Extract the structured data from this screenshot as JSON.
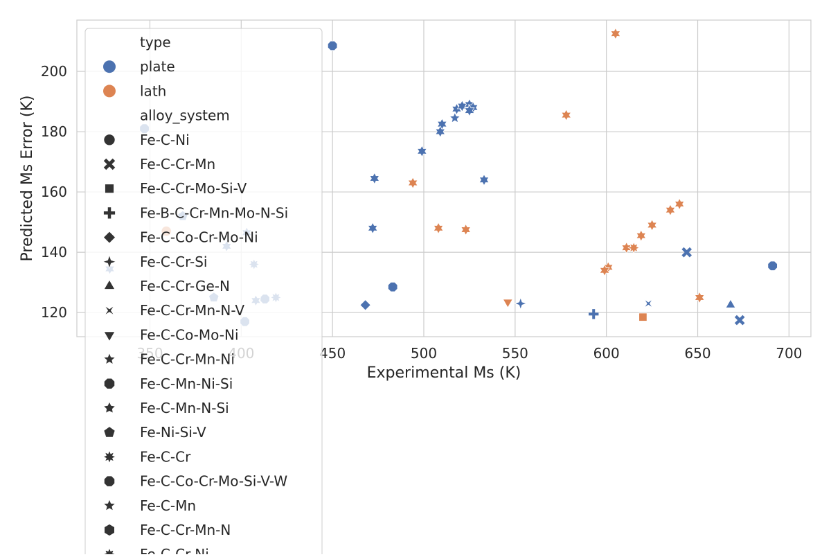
{
  "chart_data": {
    "type": "scatter",
    "xlabel": "Experimental Ms (K)",
    "ylabel": "Predicted Ms Error (K)",
    "xlim": [
      310,
      712
    ],
    "ylim": [
      112,
      217
    ],
    "xticks": [
      350,
      400,
      450,
      500,
      550,
      600,
      650,
      700
    ],
    "yticks": [
      120,
      140,
      160,
      180,
      200
    ],
    "grid": true,
    "legend_placement": "upper-left",
    "hue_legend": {
      "title": "type",
      "entries": [
        {
          "label": "plate",
          "color": "#4c72b0"
        },
        {
          "label": "lath",
          "color": "#dd8452"
        }
      ]
    },
    "style_legend": {
      "title": "alloy_system",
      "entries": [
        {
          "label": "Fe-C-Ni",
          "marker": "circle"
        },
        {
          "label": "Fe-C-Cr-Mn",
          "marker": "x"
        },
        {
          "label": "Fe-C-Cr-Mo-Si-V",
          "marker": "square"
        },
        {
          "label": "Fe-B-C-Cr-Mn-Mo-N-Si",
          "marker": "plus"
        },
        {
          "label": "Fe-C-Co-Cr-Mo-Ni",
          "marker": "diamond"
        },
        {
          "label": "Fe-C-Cr-Si",
          "marker": "star4"
        },
        {
          "label": "Fe-C-Cr-Ge-N",
          "marker": "triangle-up"
        },
        {
          "label": "Fe-C-Cr-Mn-N-V",
          "marker": "bowtie"
        },
        {
          "label": "Fe-C-Co-Mo-Ni",
          "marker": "triangle-down"
        },
        {
          "label": "Fe-C-Cr-Mn-Ni",
          "marker": "star5"
        },
        {
          "label": "Fe-C-Mn-Ni-Si",
          "marker": "octagon"
        },
        {
          "label": "Fe-C-Mn-N-Si",
          "marker": "star5b"
        },
        {
          "label": "Fe-Ni-Si-V",
          "marker": "pentagon"
        },
        {
          "label": "Fe-C-Cr",
          "marker": "star8"
        },
        {
          "label": "Fe-C-Co-Cr-Mo-Si-V-W",
          "marker": "octagon"
        },
        {
          "label": "Fe-C-Mn",
          "marker": "star5"
        },
        {
          "label": "Fe-C-Cr-Mn-N",
          "marker": "hexagon"
        },
        {
          "label": "Fe-C-Cr-Ni",
          "marker": "star8"
        }
      ]
    },
    "points": [
      {
        "x": 450,
        "y": 208.5,
        "type": "plate",
        "marker": "octagon"
      },
      {
        "x": 605,
        "y": 212.5,
        "type": "lath",
        "marker": "star6"
      },
      {
        "x": 347,
        "y": 181,
        "type": "plate",
        "marker": "octagon"
      },
      {
        "x": 368,
        "y": 152,
        "type": "plate",
        "marker": "pentagon"
      },
      {
        "x": 359,
        "y": 147,
        "type": "lath",
        "marker": "circle"
      },
      {
        "x": 403,
        "y": 146.5,
        "type": "plate",
        "marker": "star6"
      },
      {
        "x": 392,
        "y": 142,
        "type": "plate",
        "marker": "star6"
      },
      {
        "x": 407,
        "y": 136,
        "type": "plate",
        "marker": "star8"
      },
      {
        "x": 328,
        "y": 134.5,
        "type": "plate",
        "marker": "star6"
      },
      {
        "x": 385,
        "y": 125,
        "type": "plate",
        "marker": "pentagon"
      },
      {
        "x": 413,
        "y": 124.5,
        "type": "plate",
        "marker": "octagon"
      },
      {
        "x": 419,
        "y": 125,
        "type": "plate",
        "marker": "star8"
      },
      {
        "x": 408,
        "y": 124,
        "type": "plate",
        "marker": "star6"
      },
      {
        "x": 402,
        "y": 117,
        "type": "plate",
        "marker": "octagon"
      },
      {
        "x": 518,
        "y": 187.5,
        "type": "plate",
        "marker": "star6"
      },
      {
        "x": 521,
        "y": 188.5,
        "type": "plate",
        "marker": "star6"
      },
      {
        "x": 525,
        "y": 189,
        "type": "plate",
        "marker": "star6"
      },
      {
        "x": 527,
        "y": 188,
        "type": "plate",
        "marker": "star6"
      },
      {
        "x": 525,
        "y": 187,
        "type": "plate",
        "marker": "star6"
      },
      {
        "x": 517,
        "y": 184.5,
        "type": "plate",
        "marker": "star5"
      },
      {
        "x": 510,
        "y": 182.5,
        "type": "plate",
        "marker": "star6"
      },
      {
        "x": 509,
        "y": 180,
        "type": "plate",
        "marker": "star6"
      },
      {
        "x": 578,
        "y": 185.5,
        "type": "lath",
        "marker": "star6"
      },
      {
        "x": 499,
        "y": 173.5,
        "type": "plate",
        "marker": "star6"
      },
      {
        "x": 473,
        "y": 164.5,
        "type": "plate",
        "marker": "star6"
      },
      {
        "x": 533,
        "y": 164,
        "type": "plate",
        "marker": "star6"
      },
      {
        "x": 494,
        "y": 163,
        "type": "lath",
        "marker": "star6"
      },
      {
        "x": 472,
        "y": 148,
        "type": "plate",
        "marker": "star6"
      },
      {
        "x": 508,
        "y": 148,
        "type": "lath",
        "marker": "star6"
      },
      {
        "x": 523,
        "y": 147.5,
        "type": "lath",
        "marker": "star6"
      },
      {
        "x": 640,
        "y": 156,
        "type": "lath",
        "marker": "star6"
      },
      {
        "x": 635,
        "y": 154,
        "type": "lath",
        "marker": "star6"
      },
      {
        "x": 625,
        "y": 149,
        "type": "lath",
        "marker": "star6"
      },
      {
        "x": 619,
        "y": 145.5,
        "type": "lath",
        "marker": "star6"
      },
      {
        "x": 611,
        "y": 141.5,
        "type": "lath",
        "marker": "star6"
      },
      {
        "x": 615,
        "y": 141.5,
        "type": "lath",
        "marker": "star8"
      },
      {
        "x": 601,
        "y": 135,
        "type": "lath",
        "marker": "star6"
      },
      {
        "x": 599,
        "y": 134,
        "type": "lath",
        "marker": "star6"
      },
      {
        "x": 644,
        "y": 140,
        "type": "plate",
        "marker": "x"
      },
      {
        "x": 691,
        "y": 135.5,
        "type": "plate",
        "marker": "octagon"
      },
      {
        "x": 651,
        "y": 125,
        "type": "lath",
        "marker": "star6"
      },
      {
        "x": 468,
        "y": 122.5,
        "type": "plate",
        "marker": "diamond"
      },
      {
        "x": 483,
        "y": 128.5,
        "type": "plate",
        "marker": "octagon"
      },
      {
        "x": 546,
        "y": 123.5,
        "type": "lath",
        "marker": "triangle-down"
      },
      {
        "x": 553,
        "y": 123,
        "type": "plate",
        "marker": "star4"
      },
      {
        "x": 593,
        "y": 119.5,
        "type": "plate",
        "marker": "plus"
      },
      {
        "x": 620,
        "y": 118.5,
        "type": "lath",
        "marker": "square"
      },
      {
        "x": 623,
        "y": 123,
        "type": "plate",
        "marker": "bowtie"
      },
      {
        "x": 668,
        "y": 122.5,
        "type": "plate",
        "marker": "triangle-up"
      },
      {
        "x": 673,
        "y": 117.5,
        "type": "plate",
        "marker": "x"
      }
    ]
  }
}
